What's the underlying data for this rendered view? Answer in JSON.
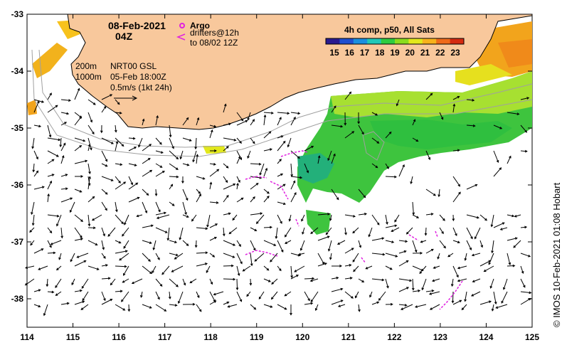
{
  "map": {
    "date": "08-Feb-2021",
    "time": "04Z",
    "legend": {
      "argo_label": "Argo",
      "drifters_label": "drifters@12h",
      "drifters_sub": "to 08/02 12Z",
      "isobath_200": "200m",
      "isobath_1000": "1000m",
      "source": "NRT00 GSL",
      "source_date": "05-Feb 18:00Z",
      "scale": "0.5m/s (1kt 24h)"
    },
    "colorbar": {
      "title": "4h comp, p50, All Sats",
      "ticks": [
        "15",
        "16",
        "17",
        "18",
        "19",
        "20",
        "21",
        "22",
        "23"
      ],
      "colors": [
        "#2a1a8f",
        "#1f4fd0",
        "#1a8fe0",
        "#21c8b8",
        "#2ecc40",
        "#8bdc1e",
        "#e2e81c",
        "#f7b21c",
        "#ef6a1a",
        "#d42a10"
      ]
    },
    "x_ticks": [
      "114",
      "115",
      "116",
      "117",
      "118",
      "119",
      "120",
      "121",
      "122",
      "123",
      "124",
      "125"
    ],
    "y_ticks": [
      "-33",
      "-34",
      "-35",
      "-36",
      "-37",
      "-38"
    ],
    "credit": "© IMOS 10-Feb-2021 01:08 Hobart",
    "colors": {
      "land": "#f8c89c",
      "drifter": "#e020e0",
      "isobath": "#a0a0a0"
    }
  }
}
